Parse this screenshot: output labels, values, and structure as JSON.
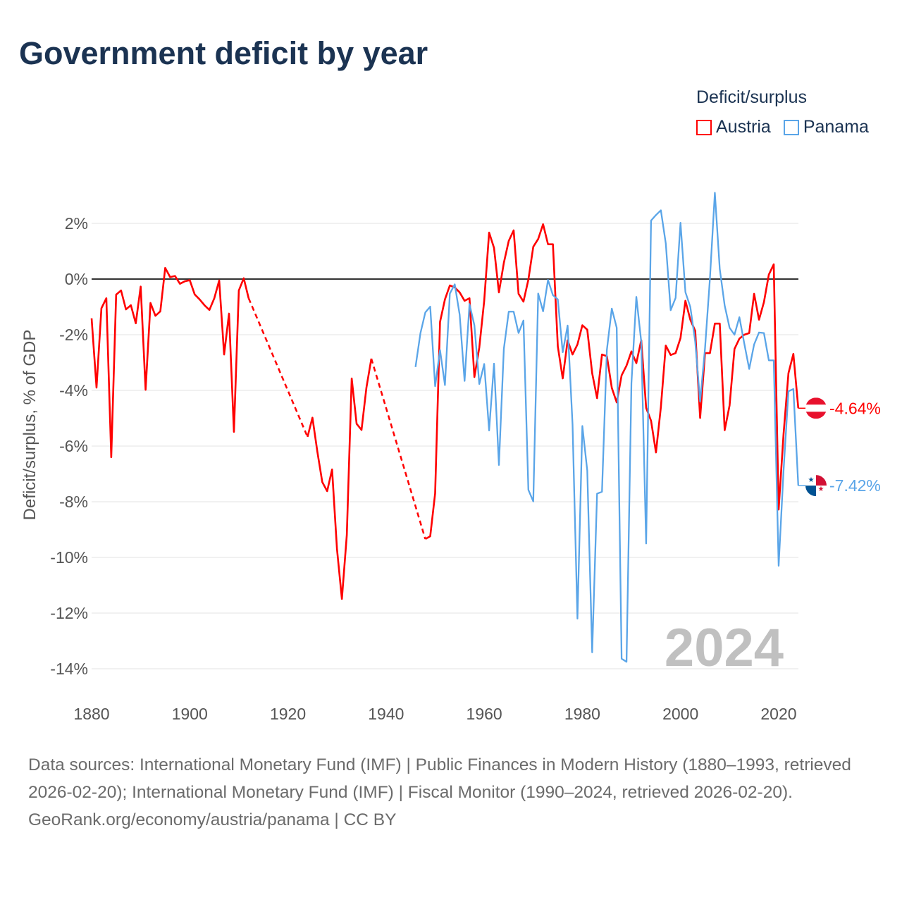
{
  "title": "Government deficit by year",
  "legend": {
    "title": "Deficit/surplus",
    "items": [
      {
        "label": "Austria",
        "color": "#ff0000"
      },
      {
        "label": "Panama",
        "color": "#5aa5e8"
      }
    ]
  },
  "footer": {
    "sources": "Data sources: International Monetary Fund (IMF) | Public Finances in Modern History (1880–1993, retrieved 2026-02-20); International Monetary Fund (IMF) | Fiscal Monitor (1990–2024, retrieved 2026-02-20).",
    "credit": "GeoRank.org/economy/austria/panama | CC BY"
  },
  "chart_data": {
    "type": "line",
    "title": "Government deficit by year",
    "xlabel": "",
    "ylabel": "Deficit/surplus, % of GDP",
    "xlim": [
      1880,
      2024
    ],
    "ylim": [
      -14.5,
      3.2
    ],
    "x_ticks": [
      "1880",
      "1900",
      "1920",
      "1940",
      "1960",
      "1980",
      "2000",
      "2020"
    ],
    "y_ticks": [
      {
        "value": 2,
        "label": "2%"
      },
      {
        "value": 0,
        "label": "0%"
      },
      {
        "value": -2,
        "label": "-2%"
      },
      {
        "value": -4,
        "label": "-4%"
      },
      {
        "value": -6,
        "label": "-6%"
      },
      {
        "value": -8,
        "label": "-8%"
      },
      {
        "value": -10,
        "label": "-10%"
      },
      {
        "value": -12,
        "label": "-12%"
      },
      {
        "value": -14,
        "label": "-14%"
      }
    ],
    "year_watermark": "2024",
    "grid": true,
    "legend_position": "top-right",
    "series": [
      {
        "name": "Austria",
        "color": "#ff0000",
        "end_label": "-4.64%",
        "flag": "austria-flag",
        "x_start": 1880,
        "values": [
          -1.41,
          -3.9,
          -1.05,
          -0.69,
          -6.4,
          -0.56,
          -0.41,
          -1.09,
          -0.94,
          -1.59,
          -0.27,
          -3.98,
          -0.86,
          -1.32,
          -1.16,
          0.4,
          0.07,
          0.11,
          -0.17,
          -0.08,
          -0.04,
          -0.55,
          -0.73,
          -0.94,
          -1.11,
          -0.69,
          -0.05,
          -2.71,
          -1.24,
          -5.49,
          -0.41,
          0.03,
          -0.69,
          null,
          null,
          null,
          null,
          null,
          null,
          null,
          null,
          null,
          null,
          null,
          -5.67,
          -4.98,
          -6.2,
          -7.29,
          -7.62,
          -6.84,
          -9.7,
          -11.49,
          -9.2,
          -3.57,
          -5.2,
          -5.42,
          -3.9,
          -2.86,
          null,
          null,
          null,
          null,
          null,
          null,
          null,
          null,
          null,
          null,
          -9.34,
          -9.24,
          -7.7,
          -1.54,
          -0.73,
          -0.23,
          -0.3,
          -0.48,
          -0.78,
          -0.69,
          -3.52,
          -2.46,
          -0.78,
          1.67,
          1.12,
          -0.48,
          0.58,
          1.37,
          1.75,
          -0.53,
          -0.81,
          -0.02,
          1.16,
          1.44,
          1.97,
          1.25,
          1.25,
          -2.42,
          -3.57,
          -2.2,
          -2.71,
          -2.35,
          -1.66,
          -1.82,
          -3.38,
          -4.28,
          -2.71,
          -2.77,
          -3.91,
          -4.43,
          -3.46,
          -3.11,
          -2.6,
          -3.02,
          -2.2,
          -4.63,
          -5.09,
          -6.23,
          -4.6,
          -2.39,
          -2.73,
          -2.66,
          -2.12,
          -0.78,
          -1.46,
          -1.86,
          -4.99,
          -2.66,
          -2.66,
          -1.6,
          -1.6,
          -5.43,
          -4.54,
          -2.51,
          -2.14,
          -2.0,
          -1.94,
          -0.53,
          -1.46,
          -0.83,
          0.16,
          0.53,
          -8.28,
          -5.57,
          -3.38,
          -2.69,
          -4.64
        ]
      },
      {
        "name": "Panama",
        "color": "#5aa5e8",
        "end_label": "-7.42%",
        "flag": "panama-flag",
        "x_start": 1946,
        "values": [
          -3.16,
          -1.95,
          -1.2,
          -0.99,
          -3.85,
          -2.55,
          -3.81,
          -0.52,
          -0.19,
          -1.28,
          -3.66,
          -0.9,
          -1.66,
          -3.77,
          -3.05,
          -5.44,
          -3.04,
          -6.68,
          -2.51,
          -1.17,
          -1.17,
          -1.94,
          -1.49,
          -7.57,
          -7.99,
          -0.52,
          -1.16,
          -0.03,
          -0.58,
          -0.73,
          -2.63,
          -1.67,
          -5.22,
          -12.2,
          -5.28,
          -6.88,
          -13.41,
          -7.71,
          -7.64,
          -2.54,
          -1.06,
          -1.75,
          -13.64,
          -13.75,
          -3.74,
          -0.64,
          -2.25,
          -9.5,
          2.1,
          2.3,
          2.47,
          1.28,
          -1.12,
          -0.68,
          2.02,
          -0.47,
          -1.0,
          -2.25,
          -4.4,
          -2.48,
          0.03,
          3.1,
          0.36,
          -0.95,
          -1.75,
          -2.0,
          -1.37,
          -2.32,
          -3.23,
          -2.35,
          -1.92,
          -1.94,
          -2.92,
          -2.92,
          -10.3,
          -6.88,
          -4.03,
          -3.95,
          -7.42
        ]
      }
    ]
  }
}
